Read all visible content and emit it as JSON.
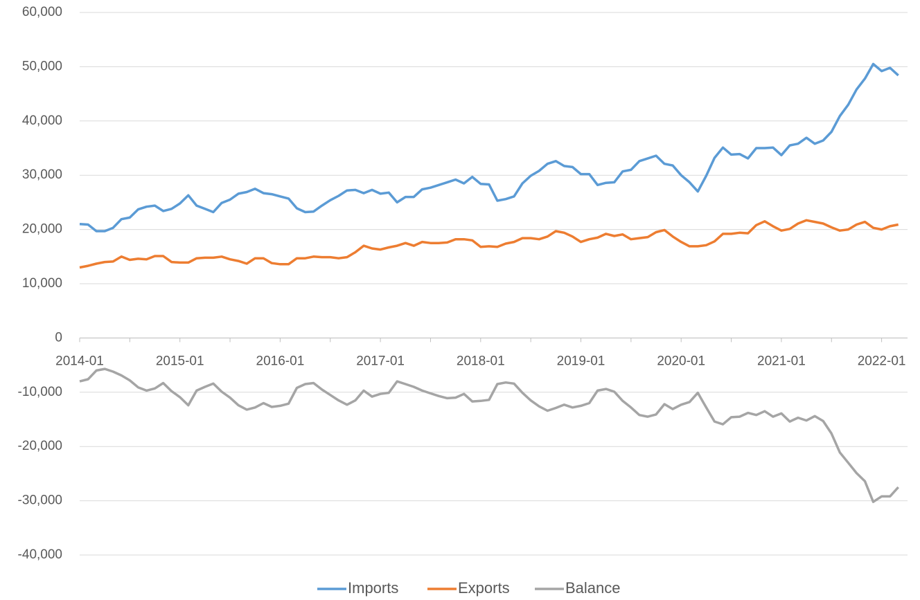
{
  "chart_data": {
    "type": "line",
    "categories": [
      "2014-01",
      null,
      null,
      null,
      null,
      null,
      null,
      null,
      null,
      null,
      null,
      null,
      "2015-01",
      null,
      null,
      null,
      null,
      null,
      null,
      null,
      null,
      null,
      null,
      null,
      "2016-01",
      null,
      null,
      null,
      null,
      null,
      null,
      null,
      null,
      null,
      null,
      null,
      "2017-01",
      null,
      null,
      null,
      null,
      null,
      null,
      null,
      null,
      null,
      null,
      null,
      "2018-01",
      null,
      null,
      null,
      null,
      null,
      null,
      null,
      null,
      null,
      null,
      null,
      "2019-01",
      null,
      null,
      null,
      null,
      null,
      null,
      null,
      null,
      null,
      null,
      null,
      "2020-01",
      null,
      null,
      null,
      null,
      null,
      null,
      null,
      null,
      null,
      null,
      null,
      "2021-01",
      null,
      null,
      null,
      null,
      null,
      null,
      null,
      null,
      null,
      null,
      null,
      "2022-01",
      null,
      null
    ],
    "series": [
      {
        "name": "Imports",
        "color": "#5b9bd5",
        "values": [
          21000,
          20900,
          19700,
          19700,
          20300,
          21900,
          22200,
          23700,
          24200,
          24400,
          23400,
          23800,
          24800,
          26300,
          24400,
          23800,
          23200,
          24900,
          25500,
          26600,
          26900,
          27500,
          26700,
          26500,
          26100,
          25700,
          23900,
          23200,
          23300,
          24400,
          25400,
          26200,
          27200,
          27300,
          26700,
          27300,
          26600,
          26800,
          25000,
          26000,
          26000,
          27400,
          27700,
          28200,
          28700,
          29200,
          28500,
          29700,
          28400,
          28300,
          25300,
          25600,
          26100,
          28500,
          29900,
          30800,
          32100,
          32600,
          31700,
          31500,
          30200,
          30200,
          28200,
          28600,
          28700,
          30700,
          31000,
          32600,
          33100,
          33600,
          32100,
          31800,
          30000,
          28700,
          27000,
          29900,
          33200,
          35100,
          33800,
          33900,
          33100,
          35000,
          35000,
          35100,
          33700,
          35500,
          35800,
          36900,
          35800,
          36400,
          38000,
          40900,
          43000,
          45800,
          47800,
          50500,
          49200,
          49800,
          48400
        ]
      },
      {
        "name": "Exports",
        "color": "#ed7d31",
        "values": [
          13000,
          13300,
          13700,
          14000,
          14100,
          15000,
          14400,
          14600,
          14500,
          15100,
          15100,
          14000,
          13900,
          13900,
          14700,
          14800,
          14800,
          15000,
          14500,
          14200,
          13700,
          14700,
          14700,
          13800,
          13600,
          13600,
          14700,
          14700,
          15000,
          14900,
          14900,
          14700,
          14900,
          15800,
          17000,
          16500,
          16300,
          16700,
          17000,
          17500,
          17000,
          17700,
          17500,
          17500,
          17600,
          18200,
          18200,
          18000,
          16800,
          16900,
          16800,
          17400,
          17700,
          18400,
          18400,
          18200,
          18700,
          19700,
          19400,
          18700,
          17700,
          18200,
          18500,
          19200,
          18800,
          19100,
          18200,
          18400,
          18600,
          19500,
          19900,
          18700,
          17700,
          16900,
          16900,
          17100,
          17800,
          19200,
          19200,
          19400,
          19300,
          20800,
          21500,
          20600,
          19800,
          20100,
          21100,
          21700,
          21400,
          21100,
          20400,
          19800,
          20000,
          20900,
          21400,
          20300,
          20000,
          20600,
          20900
        ]
      },
      {
        "name": "Balance",
        "color": "#a5a5a5",
        "values": [
          -8000,
          -7600,
          -6000,
          -5700,
          -6200,
          -6900,
          -7800,
          -9100,
          -9700,
          -9300,
          -8300,
          -9800,
          -10900,
          -12400,
          -9700,
          -9000,
          -8400,
          -9900,
          -11000,
          -12400,
          -13200,
          -12800,
          -12000,
          -12700,
          -12500,
          -12100,
          -9200,
          -8500,
          -8300,
          -9500,
          -10500,
          -11500,
          -12300,
          -11500,
          -9700,
          -10800,
          -10300,
          -10100,
          -8000,
          -8500,
          -9000,
          -9700,
          -10200,
          -10700,
          -11100,
          -11000,
          -10300,
          -11700,
          -11600,
          -11400,
          -8500,
          -8200,
          -8400,
          -10100,
          -11500,
          -12600,
          -13400,
          -12900,
          -12300,
          -12800,
          -12500,
          -12000,
          -9700,
          -9400,
          -9900,
          -11600,
          -12800,
          -14200,
          -14500,
          -14100,
          -12200,
          -13100,
          -12300,
          -11800,
          -10100,
          -12800,
          -15400,
          -15900,
          -14600,
          -14500,
          -13800,
          -14200,
          -13500,
          -14500,
          -13900,
          -15400,
          -14700,
          -15200,
          -14400,
          -15300,
          -17600,
          -21100,
          -23000,
          -24900,
          -26400,
          -30200,
          -29200,
          -29200,
          -27500
        ]
      }
    ],
    "ylim": [
      -40000,
      60000
    ],
    "yticks": [
      {
        "value": -40000,
        "label": "-40,000"
      },
      {
        "value": -30000,
        "label": "-30,000"
      },
      {
        "value": -20000,
        "label": "-20,000"
      },
      {
        "value": -10000,
        "label": "-10,000"
      },
      0,
      {
        "value": 10000,
        "label": "10,000"
      },
      {
        "value": 20000,
        "label": "20,000"
      },
      {
        "value": 30000,
        "label": "30,000"
      },
      {
        "value": 40000,
        "label": "40,000"
      },
      {
        "value": 50000,
        "label": "50,000"
      },
      {
        "value": 60000,
        "label": "60,000"
      }
    ],
    "grid": true,
    "legend": "bottom"
  }
}
